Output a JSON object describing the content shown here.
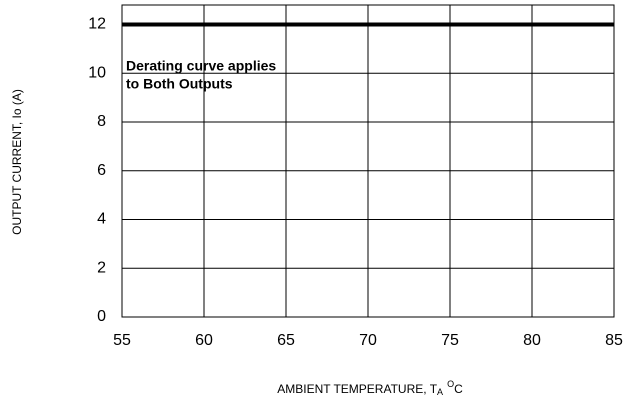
{
  "chart_data": {
    "type": "line",
    "x_label": [
      "AMBIENT TEMPERATURE, T",
      "A",
      "O",
      "C"
    ],
    "y_label": "OUTPUT CURRENT, Io (A)",
    "annotation": [
      "Derating curve applies",
      "to Both Outputs"
    ],
    "x": [
      55,
      85
    ],
    "series": [
      {
        "color": "#000000",
        "values": [
          12,
          12
        ]
      }
    ],
    "xlim": [
      55,
      85
    ],
    "xticks": [
      55,
      60,
      65,
      70,
      75,
      80,
      85
    ],
    "ylim": [
      0,
      12.8
    ],
    "yticks": [
      0,
      2,
      4,
      6,
      8,
      10,
      12
    ],
    "grid": true
  }
}
